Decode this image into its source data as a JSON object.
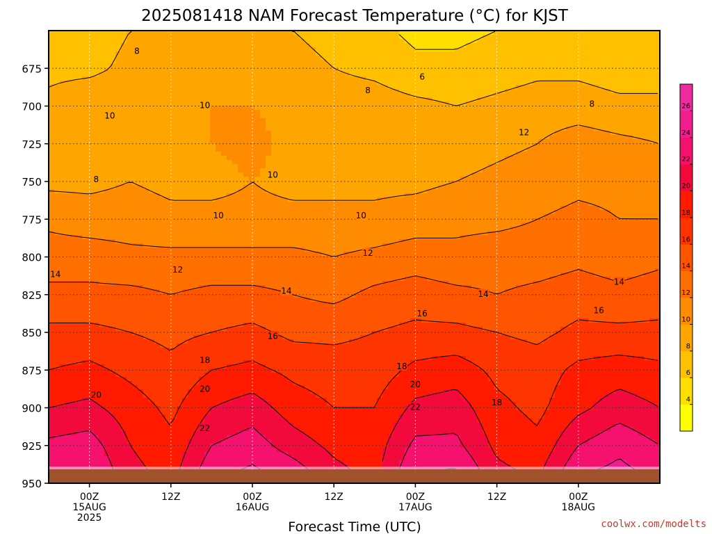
{
  "chart_data": {
    "type": "heatmap",
    "title": "2025081418 NAM Forecast Temperature (°C) for KJST",
    "xlabel": "Forecast Time (UTC)",
    "ylabel": "",
    "y_ticks": [
      675,
      700,
      725,
      750,
      775,
      800,
      825,
      850,
      875,
      900,
      925,
      950
    ],
    "ylim": [
      950,
      650
    ],
    "xlim": [
      -6,
      84
    ],
    "x_ticks": [
      {
        "hour": 0,
        "lines": [
          "00Z",
          "15AUG",
          "2025"
        ]
      },
      {
        "hour": 12,
        "lines": [
          "12Z"
        ]
      },
      {
        "hour": 24,
        "lines": [
          "00Z",
          "16AUG"
        ]
      },
      {
        "hour": 36,
        "lines": [
          "12Z"
        ]
      },
      {
        "hour": 48,
        "lines": [
          "00Z",
          "17AUG"
        ]
      },
      {
        "hour": 60,
        "lines": [
          "12Z"
        ]
      },
      {
        "hour": 72,
        "lines": [
          "00Z",
          "18AUG"
        ]
      }
    ],
    "grid": true,
    "colorbar": {
      "levels": [
        2,
        4,
        6,
        8,
        10,
        12,
        14,
        16,
        18,
        20,
        22,
        24,
        26,
        28
      ],
      "tick_labels": [
        "4",
        "6",
        "8",
        "10",
        "12",
        "14",
        "16",
        "18",
        "20",
        "22",
        "24",
        "26"
      ],
      "colors": [
        "#ffff00",
        "#ffdf00",
        "#ffc000",
        "#ffa500",
        "#ff8c00",
        "#ff7000",
        "#ff5500",
        "#ff3500",
        "#ff1a00",
        "#f20a3c",
        "#f5126e",
        "#f21d8c",
        "#ee2b9e"
      ]
    },
    "hours": [
      -6,
      0,
      6,
      12,
      18,
      24,
      30,
      36,
      42,
      48,
      54,
      60,
      66,
      72,
      78,
      84
    ],
    "temperature_profile": [
      {
        "pressure": 950,
        "values": [
          24,
          24.5,
          21,
          19.5,
          24,
          25,
          24,
          21,
          19.5,
          24.5,
          25,
          21,
          20,
          24.5,
          25,
          24
        ]
      },
      {
        "pressure": 925,
        "values": [
          22.5,
          23,
          20,
          18.5,
          22,
          23,
          21,
          19.5,
          19,
          22.5,
          22.5,
          19.5,
          18.5,
          22,
          23.5,
          22
        ]
      },
      {
        "pressure": 900,
        "values": [
          20,
          20.5,
          19,
          17.5,
          20,
          21,
          19,
          18,
          18,
          20.5,
          21,
          18.5,
          17.5,
          19.5,
          21,
          20
        ]
      },
      {
        "pressure": 875,
        "values": [
          18,
          18.5,
          17.5,
          16.5,
          18,
          18.5,
          17.5,
          17,
          17,
          18.5,
          19,
          17.5,
          17,
          18.5,
          19,
          18.5
        ]
      },
      {
        "pressure": 850,
        "values": [
          16.5,
          16.5,
          16,
          15.5,
          16,
          16.5,
          15.5,
          15.5,
          16,
          16.5,
          16.5,
          16,
          15.5,
          16.5,
          16.5,
          16.5
        ]
      },
      {
        "pressure": 825,
        "values": [
          14.5,
          14.5,
          14.5,
          14,
          14.5,
          14.5,
          14,
          13.5,
          14.5,
          15,
          14.5,
          14,
          14.5,
          15,
          14.5,
          15
        ]
      },
      {
        "pressure": 800,
        "values": [
          13,
          13,
          12.5,
          12.5,
          12.5,
          12.5,
          12.5,
          12,
          12.5,
          13,
          12.5,
          13,
          13,
          13.5,
          13,
          13.5
        ]
      },
      {
        "pressure": 775,
        "values": [
          11.5,
          11,
          11,
          10.5,
          10.5,
          10.5,
          10.5,
          10.5,
          10.5,
          11,
          11.5,
          11.5,
          12,
          12.5,
          12,
          12
        ]
      },
      {
        "pressure": 750,
        "values": [
          9.5,
          9.5,
          10,
          9.5,
          9.5,
          10,
          9.5,
          9.5,
          9.5,
          9.5,
          10,
          10.5,
          11,
          11.5,
          11.5,
          11
        ]
      },
      {
        "pressure": 725,
        "values": [
          9.5,
          8.5,
          9,
          9.5,
          10,
          10.5,
          9.5,
          9.5,
          9.5,
          9.5,
          9,
          9.5,
          10,
          11,
          10.5,
          10
        ]
      },
      {
        "pressure": 700,
        "values": [
          8.5,
          9.5,
          9.5,
          9.5,
          10,
          10,
          9.5,
          9,
          9,
          8.5,
          8,
          8.5,
          9,
          9,
          8.5,
          8.5
        ]
      },
      {
        "pressure": 675,
        "values": [
          7.5,
          7.5,
          8.5,
          8.5,
          8.5,
          8.5,
          8.5,
          8,
          7.5,
          6.5,
          6.5,
          7,
          7.5,
          7.5,
          7,
          7
        ]
      },
      {
        "pressure": 650,
        "values": [
          7,
          7,
          8,
          8,
          8,
          8,
          8,
          7.5,
          6.5,
          5.5,
          5.5,
          6,
          7,
          7,
          6.5,
          6.5
        ]
      }
    ],
    "contour_labels": [
      {
        "text": "8",
        "hour": 7,
        "pressure": 664
      },
      {
        "text": "10",
        "hour": 3,
        "pressure": 707
      },
      {
        "text": "10",
        "hour": 17,
        "pressure": 700
      },
      {
        "text": "8",
        "hour": 1,
        "pressure": 749
      },
      {
        "text": "10",
        "hour": 27,
        "pressure": 746
      },
      {
        "text": "8",
        "hour": 41,
        "pressure": 690
      },
      {
        "text": "6",
        "hour": 49,
        "pressure": 681
      },
      {
        "text": "8",
        "hour": 74,
        "pressure": 699
      },
      {
        "text": "12",
        "hour": 64,
        "pressure": 718
      },
      {
        "text": "10",
        "hour": 19,
        "pressure": 773
      },
      {
        "text": "10",
        "hour": 40,
        "pressure": 773
      },
      {
        "text": "12",
        "hour": 41,
        "pressure": 798
      },
      {
        "text": "12",
        "hour": 13,
        "pressure": 809
      },
      {
        "text": "14",
        "hour": -5,
        "pressure": 812
      },
      {
        "text": "14",
        "hour": 29,
        "pressure": 823
      },
      {
        "text": "14",
        "hour": 58,
        "pressure": 825
      },
      {
        "text": "14",
        "hour": 78,
        "pressure": 817
      },
      {
        "text": "16",
        "hour": 49,
        "pressure": 838
      },
      {
        "text": "16",
        "hour": 75,
        "pressure": 836
      },
      {
        "text": "16",
        "hour": 27,
        "pressure": 853
      },
      {
        "text": "18",
        "hour": 17,
        "pressure": 869
      },
      {
        "text": "18",
        "hour": 46,
        "pressure": 873
      },
      {
        "text": "20",
        "hour": 1,
        "pressure": 892
      },
      {
        "text": "20",
        "hour": 17,
        "pressure": 888
      },
      {
        "text": "20",
        "hour": 48,
        "pressure": 885
      },
      {
        "text": "22",
        "hour": 17,
        "pressure": 914
      },
      {
        "text": "22",
        "hour": 48,
        "pressure": 900
      },
      {
        "text": "18",
        "hour": 60,
        "pressure": 897
      }
    ],
    "terrain_color": "#a0522d",
    "credit": "coolwx.com/modelts"
  }
}
